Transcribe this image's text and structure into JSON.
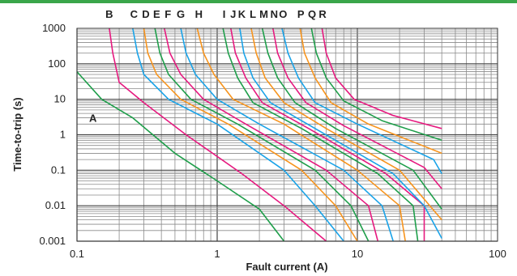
{
  "chart_data": {
    "type": "line",
    "xlabel": "Fault current (A)",
    "ylabel": "Time-to-trip (s)",
    "xscale": "log",
    "yscale": "log",
    "xlim": [
      0.1,
      100
    ],
    "ylim": [
      0.001,
      1000
    ],
    "grid": true,
    "x_tick_labels": [
      "0.1",
      "1",
      "10",
      "100"
    ],
    "y_tick_labels": [
      "0.001",
      "0.01",
      "0.1",
      "1",
      "10",
      "100",
      "1000"
    ],
    "colors": {
      "magenta": "#e6197f",
      "blue": "#1aa3e8",
      "orange": "#f7941d",
      "green": "#1e9e4a"
    },
    "series": [
      {
        "name": "A",
        "color": "green",
        "x": [
          0.1,
          0.15,
          0.25,
          0.5,
          1,
          2,
          3
        ],
        "y": [
          60,
          10,
          3,
          0.3,
          0.05,
          0.008,
          0.001
        ]
      },
      {
        "name": "B",
        "color": "magenta",
        "x": [
          0.17,
          0.18,
          0.2,
          0.3,
          0.6,
          1.5,
          3,
          6
        ],
        "y": [
          1000,
          200,
          30,
          8,
          1,
          0.08,
          0.01,
          0.001
        ]
      },
      {
        "name": "C",
        "color": "blue",
        "x": [
          0.25,
          0.27,
          0.3,
          0.45,
          1,
          3,
          5,
          8
        ],
        "y": [
          1000,
          200,
          50,
          10,
          2,
          0.1,
          0.01,
          0.001
        ]
      },
      {
        "name": "D",
        "color": "orange",
        "x": [
          0.3,
          0.32,
          0.37,
          0.55,
          1.2,
          4,
          7,
          10
        ],
        "y": [
          1000,
          200,
          50,
          10,
          2,
          0.1,
          0.01,
          0.001
        ]
      },
      {
        "name": "E",
        "color": "green",
        "x": [
          0.36,
          0.39,
          0.45,
          0.65,
          1.4,
          5,
          9,
          12
        ],
        "y": [
          1000,
          200,
          50,
          10,
          2,
          0.1,
          0.01,
          0.001
        ]
      },
      {
        "name": "F",
        "color": "magenta",
        "x": [
          0.42,
          0.46,
          0.55,
          0.8,
          1.6,
          6,
          12,
          14
        ],
        "y": [
          1000,
          200,
          50,
          10,
          2,
          0.1,
          0.01,
          0.001
        ]
      },
      {
        "name": "G",
        "color": "blue",
        "x": [
          0.55,
          0.6,
          0.7,
          1.0,
          2.0,
          8,
          15,
          18
        ],
        "y": [
          1000,
          200,
          50,
          10,
          2,
          0.1,
          0.01,
          0.001
        ]
      },
      {
        "name": "H",
        "color": "orange",
        "x": [
          0.72,
          0.8,
          0.95,
          1.3,
          3,
          10,
          20,
          22
        ],
        "y": [
          1000,
          200,
          50,
          10,
          2,
          0.1,
          0.01,
          0.001
        ]
      },
      {
        "name": "I",
        "color": "green",
        "x": [
          1.1,
          1.2,
          1.4,
          1.8,
          4,
          14,
          25,
          27
        ],
        "y": [
          1000,
          200,
          40,
          8,
          1.5,
          0.08,
          0.01,
          0.001
        ]
      },
      {
        "name": "J",
        "color": "magenta",
        "x": [
          1.25,
          1.35,
          1.6,
          2.1,
          4.5,
          16,
          30,
          30
        ],
        "y": [
          1000,
          200,
          40,
          8,
          1.5,
          0.08,
          0.01,
          0.001
        ]
      },
      {
        "name": "K",
        "color": "blue",
        "x": [
          1.45,
          1.55,
          1.8,
          2.4,
          5,
          18,
          30,
          40
        ],
        "y": [
          1000,
          200,
          40,
          8,
          1.5,
          0.08,
          0.01,
          0.0012
        ]
      },
      {
        "name": "L",
        "color": "orange",
        "x": [
          1.75,
          1.9,
          2.2,
          3,
          6,
          20,
          40
        ],
        "y": [
          1000,
          200,
          40,
          8,
          1.5,
          0.1,
          0.004
        ]
      },
      {
        "name": "M",
        "color": "green",
        "x": [
          2.1,
          2.3,
          2.7,
          3.6,
          7,
          25,
          40
        ],
        "y": [
          1000,
          200,
          40,
          8,
          1.5,
          0.1,
          0.008
        ]
      },
      {
        "name": "N",
        "color": "magenta",
        "x": [
          2.5,
          2.7,
          3.2,
          4.3,
          8,
          30,
          40
        ],
        "y": [
          1000,
          200,
          40,
          8,
          1.8,
          0.12,
          0.03
        ]
      },
      {
        "name": "O",
        "color": "blue",
        "x": [
          2.9,
          3.2,
          3.8,
          5,
          10,
          35,
          40
        ],
        "y": [
          1000,
          200,
          40,
          8,
          2,
          0.2,
          0.08
        ]
      },
      {
        "name": "P",
        "color": "orange",
        "x": [
          3.9,
          4.2,
          5,
          6.5,
          12,
          40
        ],
        "y": [
          1000,
          200,
          40,
          8,
          2,
          0.3
        ]
      },
      {
        "name": "Q",
        "color": "green",
        "x": [
          4.7,
          5.1,
          6,
          8,
          15,
          40
        ],
        "y": [
          1000,
          200,
          40,
          9,
          2.5,
          0.7
        ]
      },
      {
        "name": "R",
        "color": "magenta",
        "x": [
          5.6,
          6,
          7,
          9.5,
          18,
          40
        ],
        "y": [
          1000,
          200,
          40,
          10,
          3.5,
          1.5
        ]
      }
    ],
    "top_labels": [
      {
        "text": "B",
        "x": 0.17
      },
      {
        "text": "C",
        "x": 0.255
      },
      {
        "text": "D",
        "x": 0.31
      },
      {
        "text": "E",
        "x": 0.37
      },
      {
        "text": "F",
        "x": 0.445
      },
      {
        "text": "G",
        "x": 0.55
      },
      {
        "text": "H",
        "x": 0.74
      },
      {
        "text": "I",
        "x": 1.12
      },
      {
        "text": "J",
        "x": 1.3
      },
      {
        "text": "K",
        "x": 1.5
      },
      {
        "text": "L",
        "x": 1.8
      },
      {
        "text": "M",
        "x": 2.15
      },
      {
        "text": "N",
        "x": 2.55
      },
      {
        "text": "O",
        "x": 2.95
      },
      {
        "text": "P",
        "x": 3.95
      },
      {
        "text": "Q",
        "x": 4.75
      },
      {
        "text": "R",
        "x": 5.65
      }
    ],
    "inline_labels": [
      {
        "text": "A",
        "x": 0.13,
        "y": 3
      }
    ]
  }
}
